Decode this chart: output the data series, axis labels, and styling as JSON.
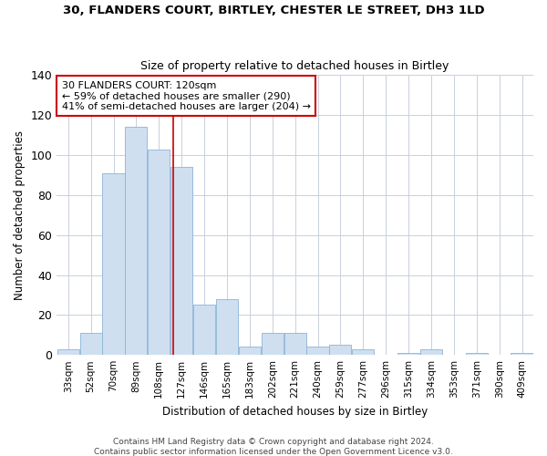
{
  "title": "30, FLANDERS COURT, BIRTLEY, CHESTER LE STREET, DH3 1LD",
  "subtitle": "Size of property relative to detached houses in Birtley",
  "xlabel": "Distribution of detached houses by size in Birtley",
  "ylabel": "Number of detached properties",
  "footer1": "Contains HM Land Registry data © Crown copyright and database right 2024.",
  "footer2": "Contains public sector information licensed under the Open Government Licence v3.0.",
  "bin_labels": [
    "33sqm",
    "52sqm",
    "70sqm",
    "89sqm",
    "108sqm",
    "127sqm",
    "146sqm",
    "165sqm",
    "183sqm",
    "202sqm",
    "221sqm",
    "240sqm",
    "259sqm",
    "277sqm",
    "296sqm",
    "315sqm",
    "334sqm",
    "353sqm",
    "371sqm",
    "390sqm",
    "409sqm"
  ],
  "bar_values": [
    3,
    11,
    91,
    114,
    103,
    94,
    25,
    28,
    4,
    11,
    11,
    4,
    5,
    3,
    0,
    1,
    3,
    0,
    1,
    0,
    1
  ],
  "bar_color": "#cfdff0",
  "bar_edge_color": "#8ab4d8",
  "annotation_title": "30 FLANDERS COURT: 120sqm",
  "annotation_line1": "← 59% of detached houses are smaller (290)",
  "annotation_line2": "41% of semi-detached houses are larger (204) →",
  "vline_color": "#cc0000",
  "annotation_box_color": "#ffffff",
  "annotation_box_edge": "#cc0000",
  "ylim": [
    0,
    140
  ],
  "yticks": [
    0,
    20,
    40,
    60,
    80,
    100,
    120,
    140
  ],
  "background_color": "#ffffff",
  "grid_color": "#c8d0dc",
  "vline_x_index": 4.63
}
